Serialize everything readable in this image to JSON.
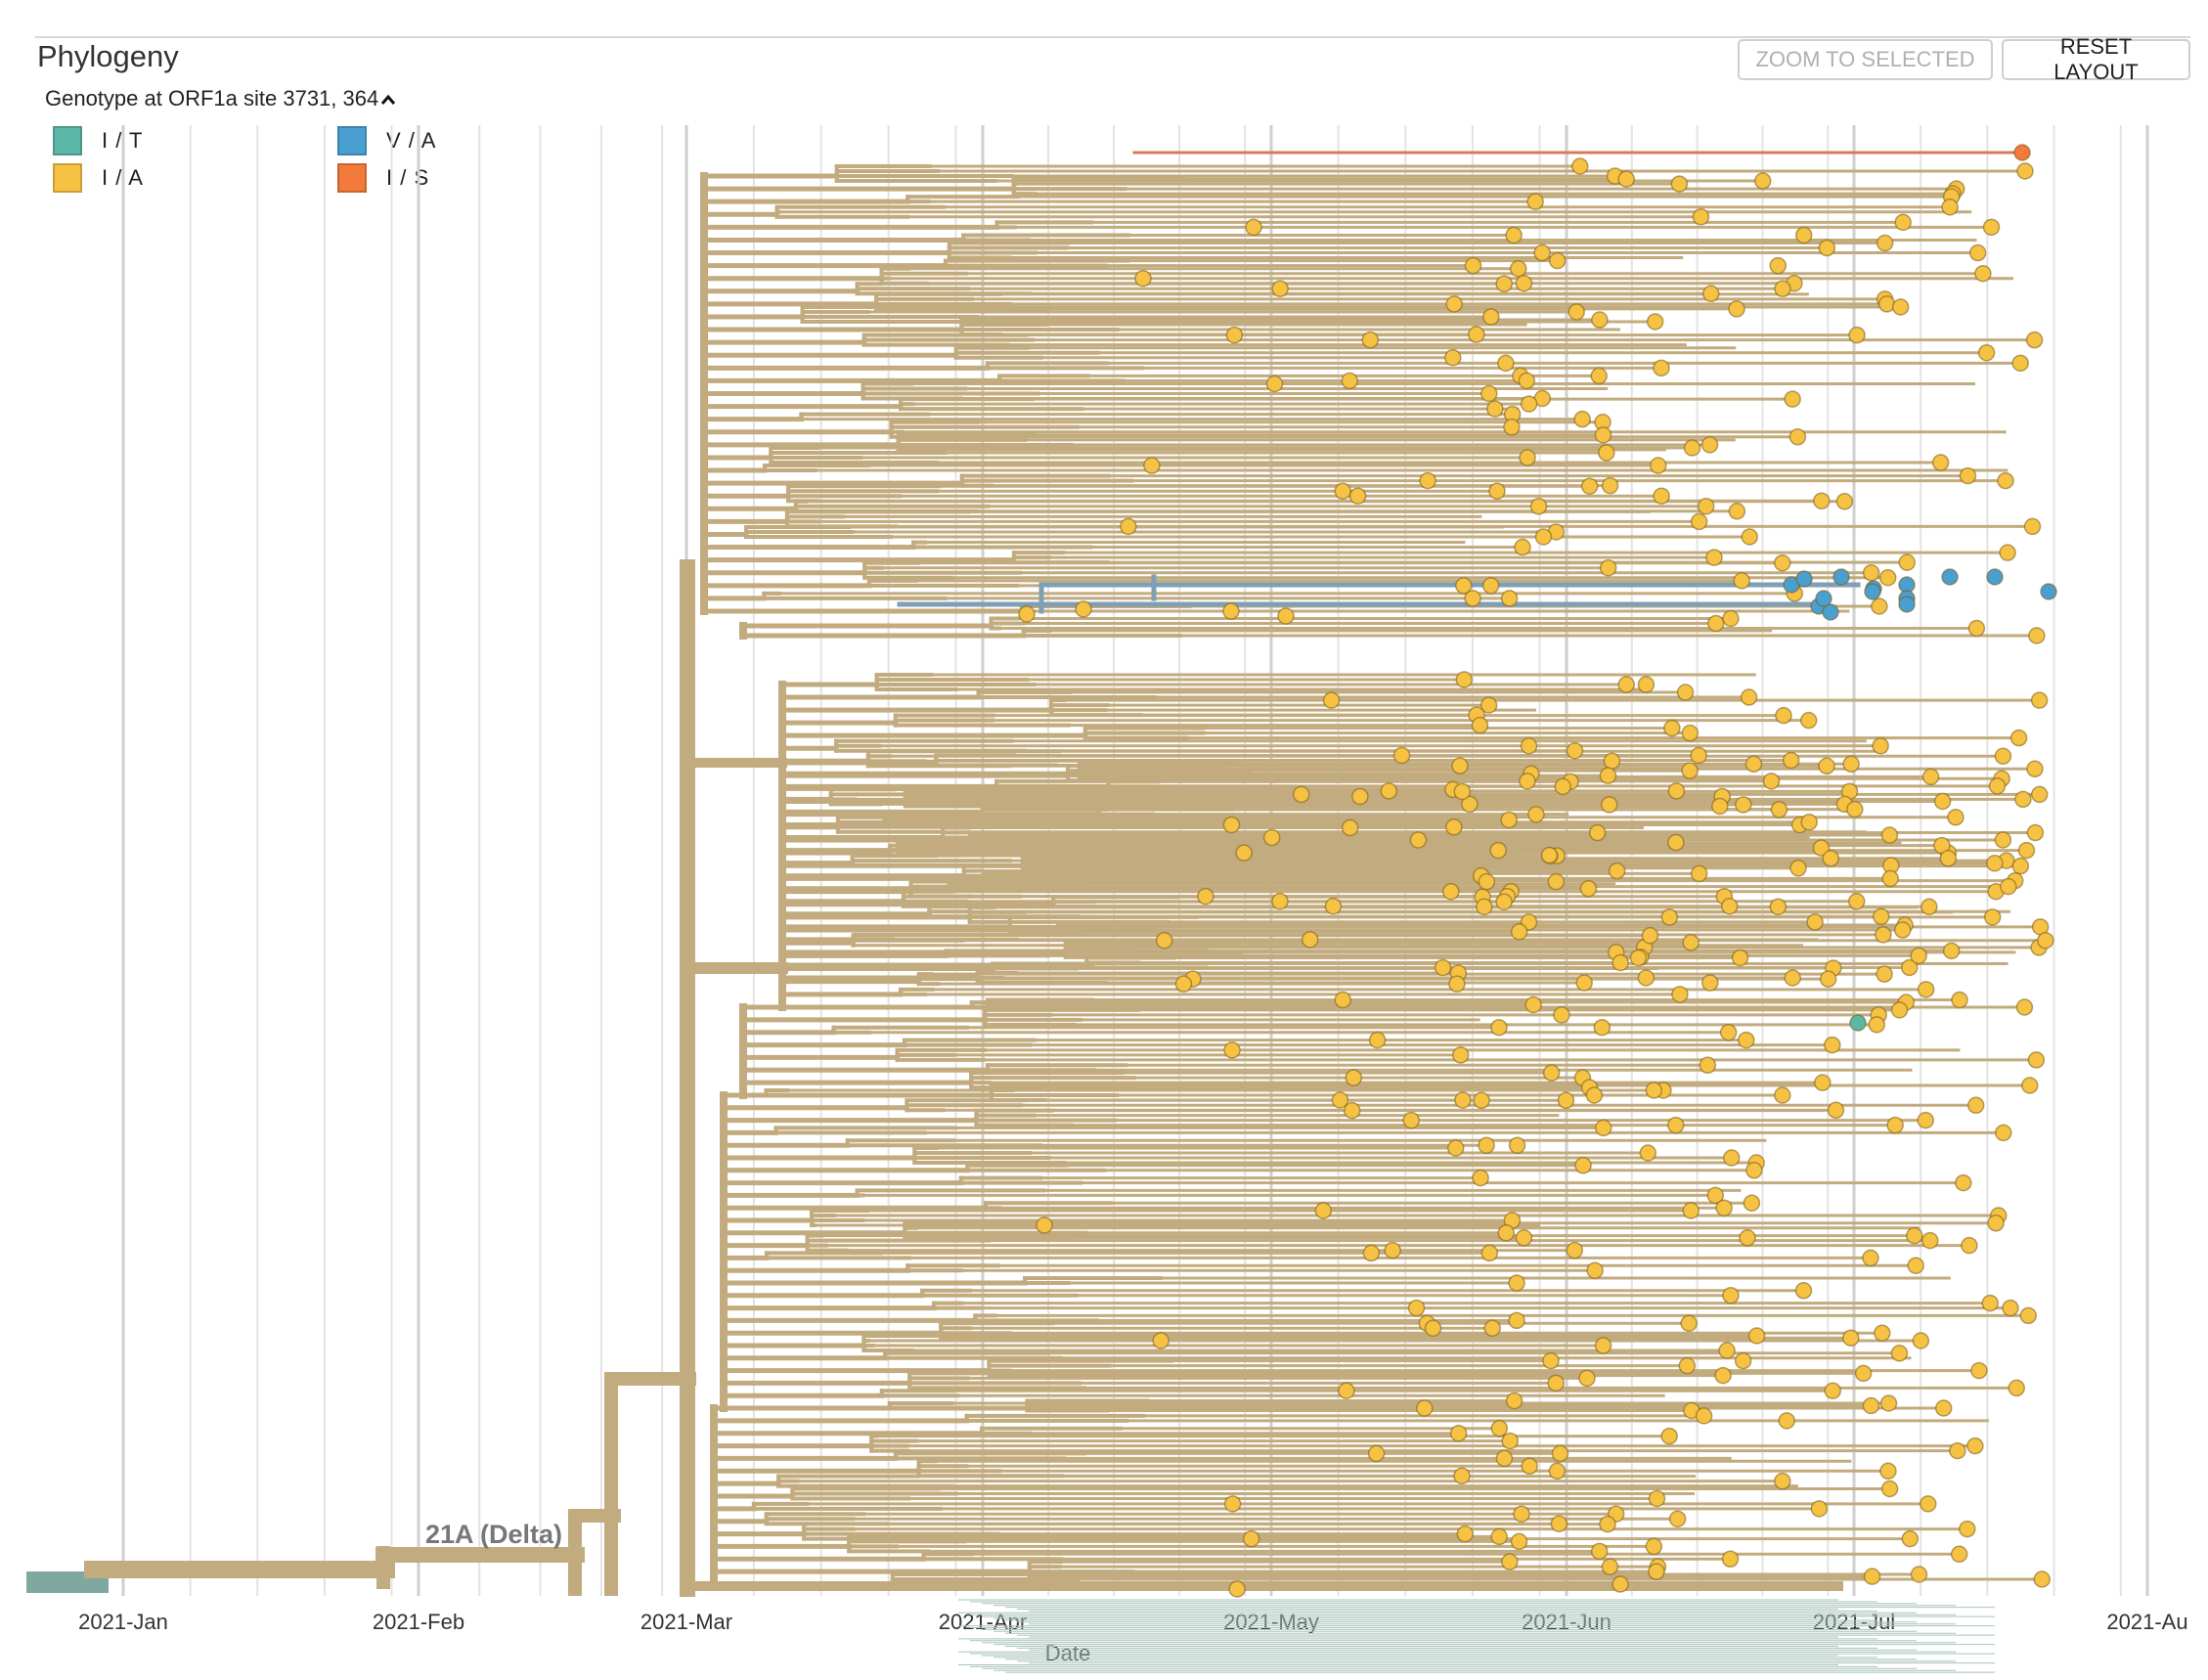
{
  "panel": {
    "title": "Phylogeny",
    "zoom_button": "ZOOM TO SELECTED",
    "reset_button": "RESET LAYOUT"
  },
  "legend": {
    "title": "Genotype at ORF1a site 3731, 364",
    "items": [
      {
        "label": "I / T",
        "color": "#5cb8a6"
      },
      {
        "label": "V / A",
        "color": "#4a9fd1"
      },
      {
        "label": "I / A",
        "color": "#f6c244"
      },
      {
        "label": "I / S",
        "color": "#f37a3b"
      }
    ]
  },
  "colors": {
    "branch": "#c2ab7e",
    "branch_blue": "#7f9fb5",
    "branch_teal": "#7fa9a0",
    "grid": "#e3e3e3",
    "grid_major": "#cfcfcf"
  },
  "chart_data": {
    "type": "phylogenetic-tree",
    "xlabel": "Date",
    "x_ticks": [
      "2021-Jan",
      "2021-Feb",
      "2021-Mar",
      "2021-Apr",
      "2021-May",
      "2021-Jun",
      "2021-Jul",
      "2021-Au"
    ],
    "x_range": [
      "2020-12-22",
      "2021-08-01"
    ],
    "clade_labels": [
      {
        "text": "21A (Delta)",
        "date": "2021-02-01"
      }
    ],
    "color_by": "Genotype at ORF1a site 3731, 364",
    "tip_counts": {
      "I / A": 640,
      "V / A": 14,
      "I / T": 1,
      "I / S": 1
    },
    "highlight_tips": [
      {
        "genotype": "I / S",
        "date": "2021-07-19"
      },
      {
        "genotype": "I / T",
        "date": "2021-07-01"
      }
    ]
  }
}
